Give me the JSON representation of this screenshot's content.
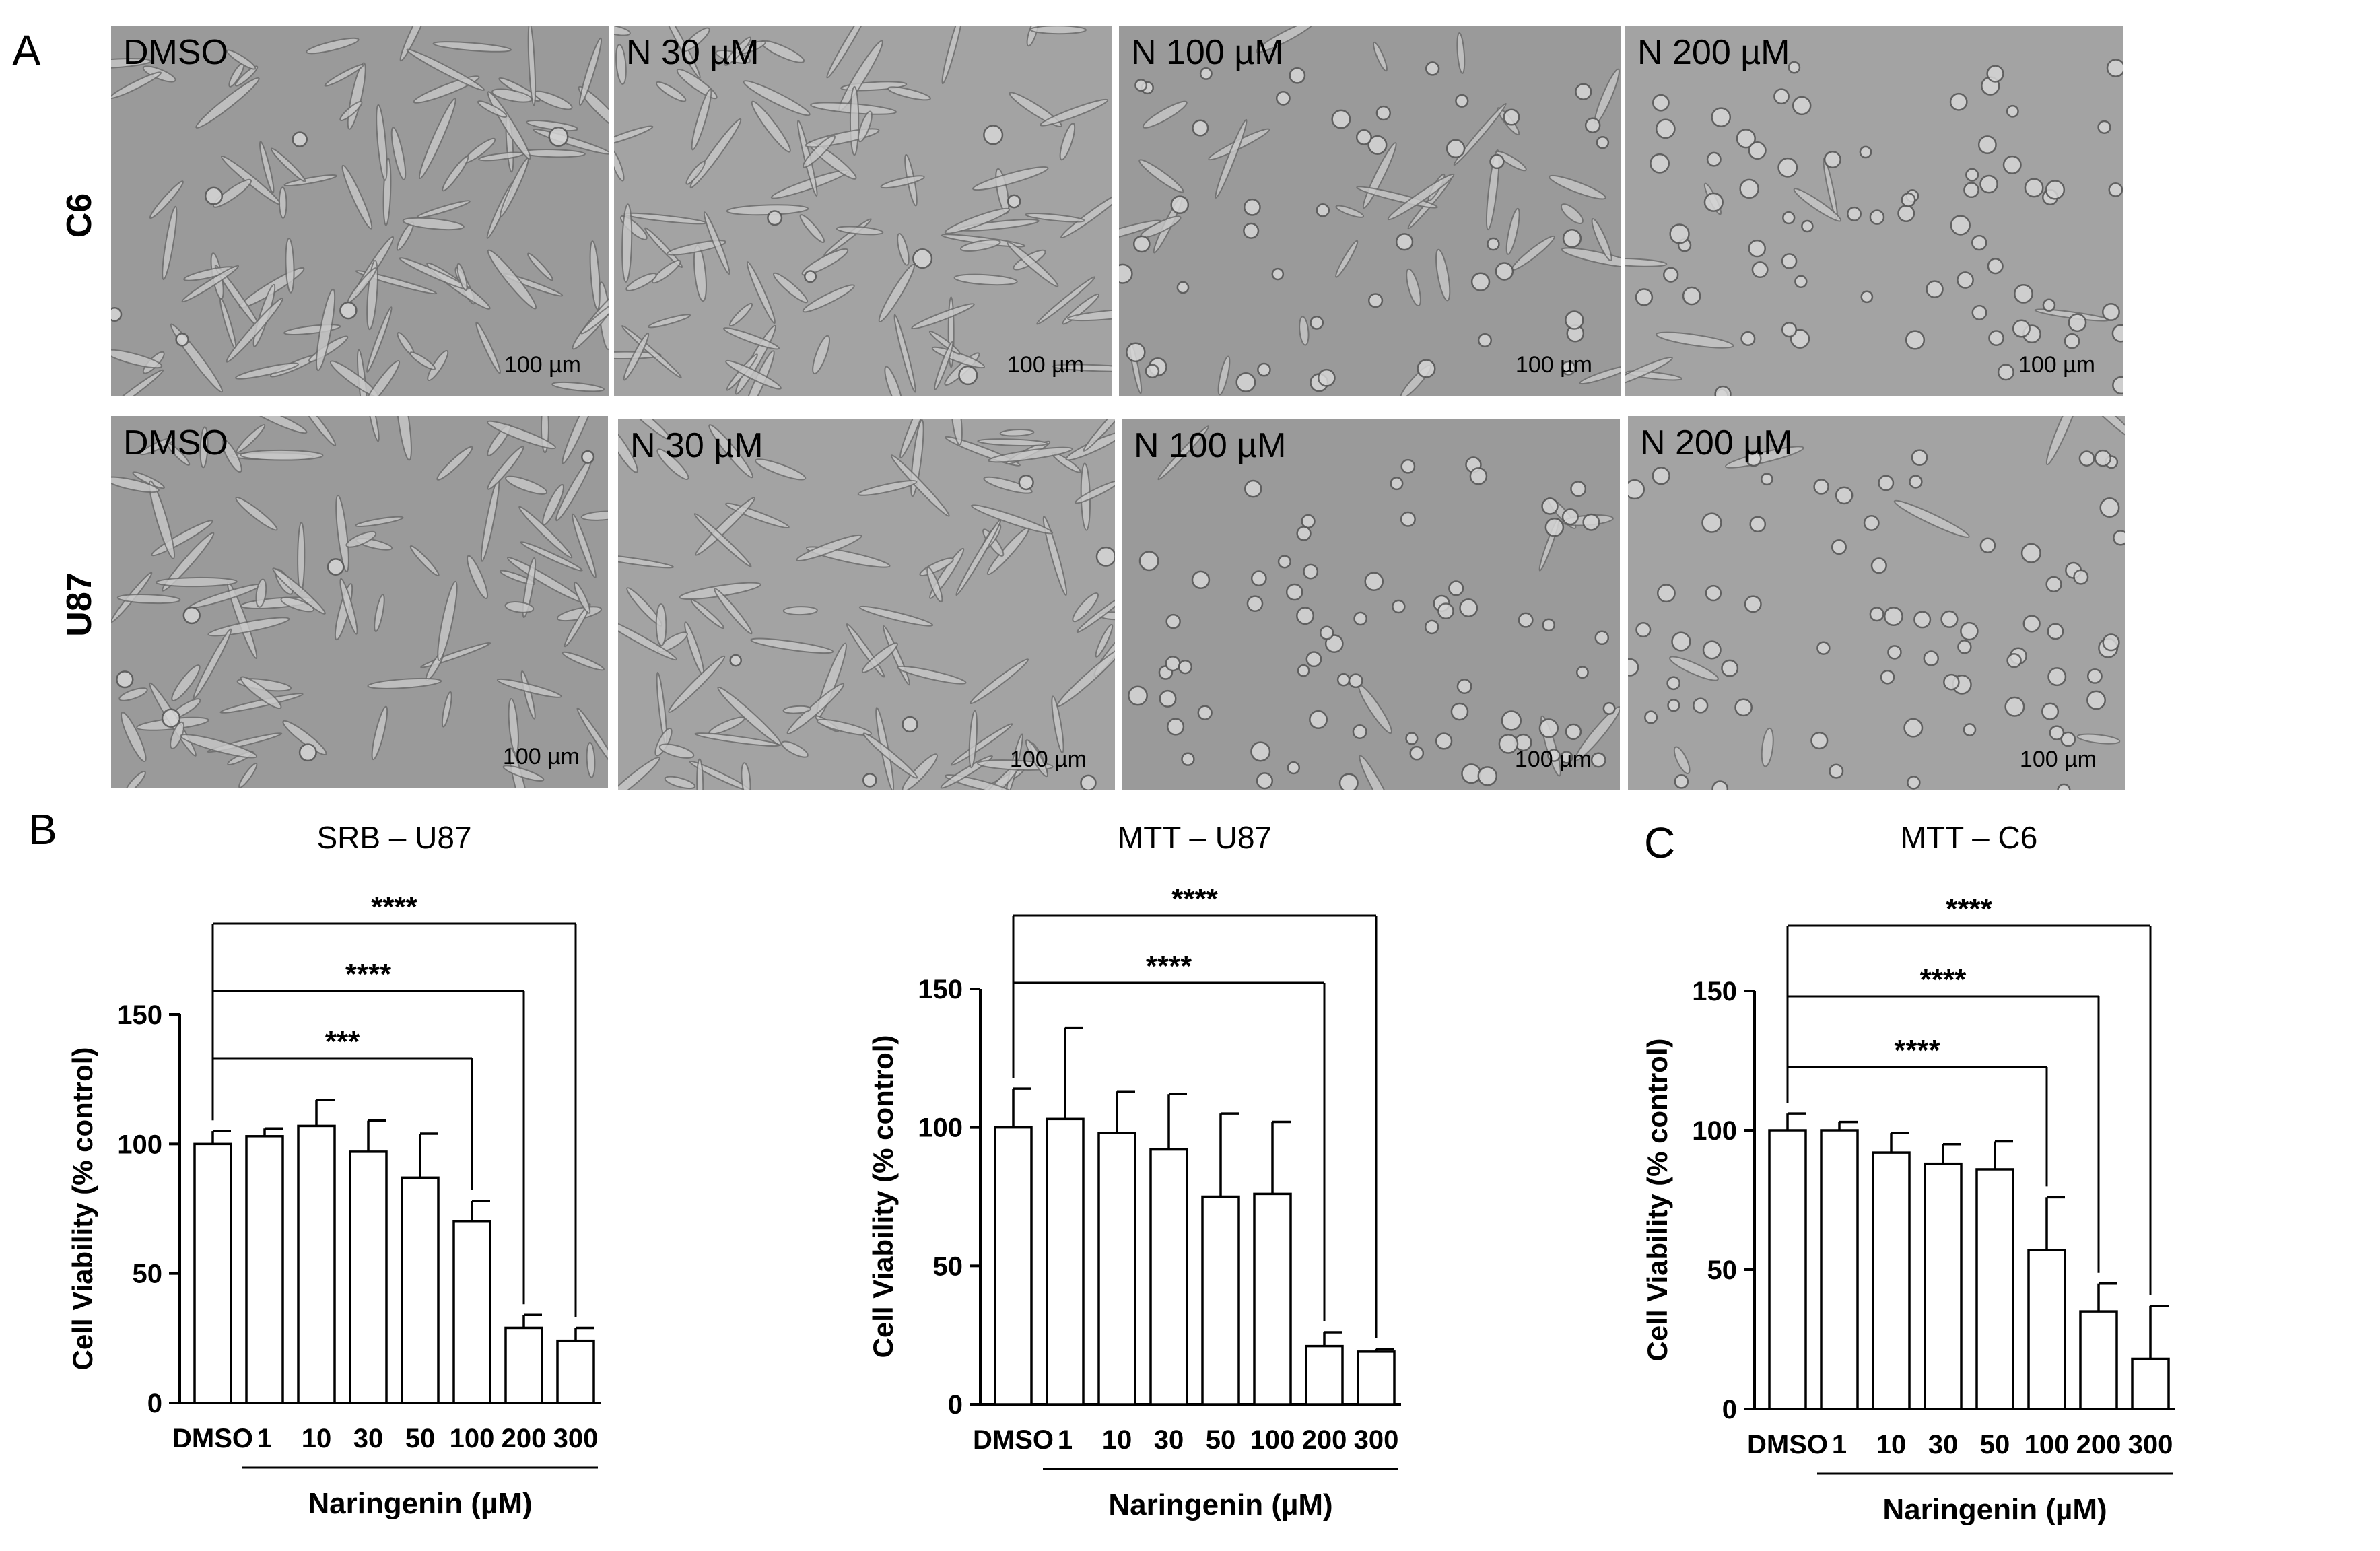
{
  "panels": {
    "A": "A",
    "B": "B",
    "C": "C"
  },
  "micrographs": {
    "rows": [
      {
        "label": "C6",
        "conditions": [
          "DMSO",
          "N 30 µM",
          "N 100 µM",
          "N 200 µM"
        ]
      },
      {
        "label": "U87",
        "conditions": [
          "DMSO",
          "N 30 µM",
          "N 100 µM",
          "N 200 µM"
        ]
      }
    ],
    "scale_bar": "100 µm"
  },
  "chart_data": [
    {
      "type": "bar",
      "panel": "B",
      "title": "SRB – U87",
      "ylabel": "Cell Viability (% control)",
      "xlabel": "Naringenin (µM)",
      "ylim": [
        0,
        150
      ],
      "yticks": [
        0,
        50,
        100,
        150
      ],
      "categories": [
        "DMSO",
        "1",
        "10",
        "30",
        "50",
        "100",
        "200",
        "300"
      ],
      "values": [
        100,
        103,
        107,
        97,
        87,
        70,
        29,
        24
      ],
      "errors": [
        5,
        3,
        10,
        12,
        17,
        8,
        5,
        5
      ],
      "significance": [
        {
          "from": 0,
          "to": 5,
          "label": "***"
        },
        {
          "from": 0,
          "to": 6,
          "label": "****"
        },
        {
          "from": 0,
          "to": 7,
          "label": "****"
        }
      ]
    },
    {
      "type": "bar",
      "panel": "B",
      "title": "MTT – U87",
      "ylabel": "Cell Viability (% control)",
      "xlabel": "Naringenin (µM)",
      "ylim": [
        0,
        150
      ],
      "yticks": [
        0,
        50,
        100,
        150
      ],
      "categories": [
        "DMSO",
        "1",
        "10",
        "30",
        "50",
        "100",
        "200",
        "300"
      ],
      "values": [
        100,
        103,
        98,
        92,
        75,
        76,
        21,
        19
      ],
      "errors": [
        14,
        33,
        15,
        20,
        30,
        26,
        5,
        1
      ],
      "significance": [
        {
          "from": 0,
          "to": 6,
          "label": "****"
        },
        {
          "from": 0,
          "to": 7,
          "label": "****"
        }
      ]
    },
    {
      "type": "bar",
      "panel": "C",
      "title": "MTT – C6",
      "ylabel": "Cell Viability (% control)",
      "xlabel": "Naringenin (µM)",
      "ylim": [
        0,
        150
      ],
      "yticks": [
        0,
        50,
        100,
        150
      ],
      "categories": [
        "DMSO",
        "1",
        "10",
        "30",
        "50",
        "100",
        "200",
        "300"
      ],
      "values": [
        100,
        100,
        92,
        88,
        86,
        57,
        35,
        18
      ],
      "errors": [
        6,
        3,
        7,
        7,
        10,
        19,
        10,
        19
      ],
      "significance": [
        {
          "from": 0,
          "to": 5,
          "label": "****"
        },
        {
          "from": 0,
          "to": 6,
          "label": "****"
        },
        {
          "from": 0,
          "to": 7,
          "label": "****"
        }
      ]
    }
  ]
}
